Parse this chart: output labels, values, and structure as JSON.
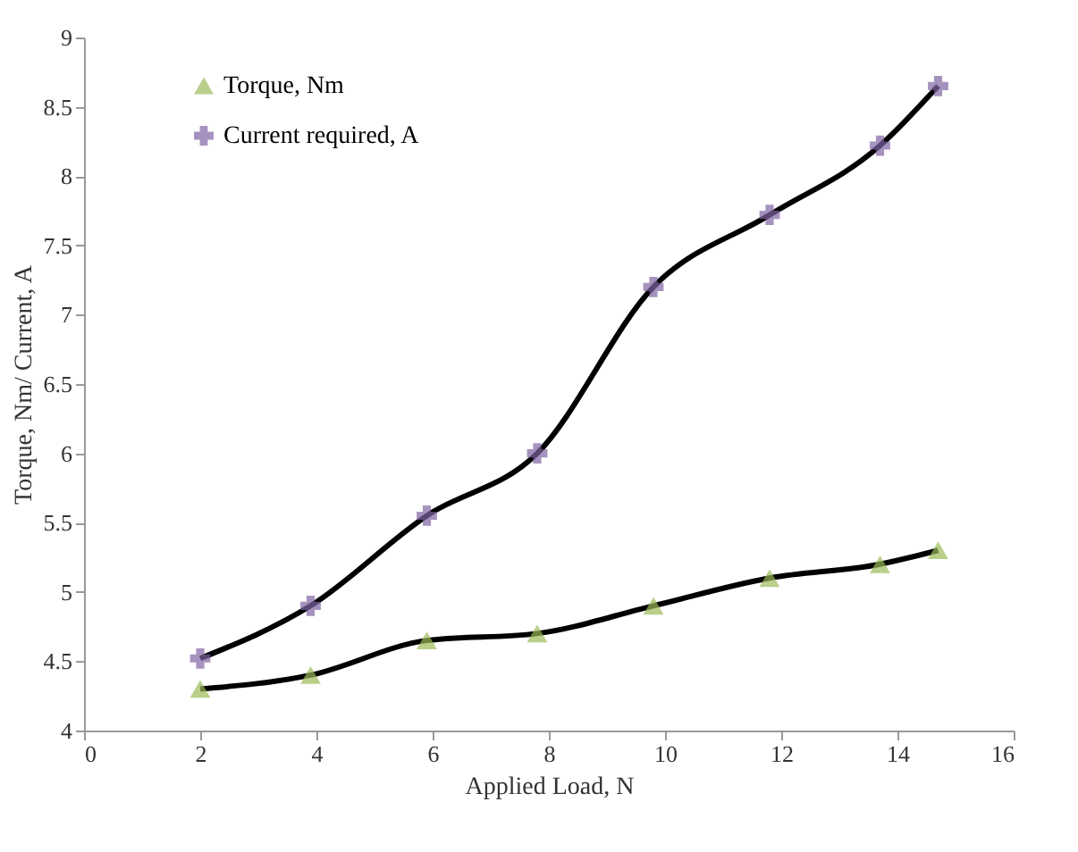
{
  "chart_data": {
    "type": "line",
    "xlabel": "Applied Load, N",
    "ylabel": "Torque, Nm/ Current, A",
    "x": [
      2,
      3.9,
      5.9,
      7.8,
      9.8,
      11.8,
      13.7,
      14.7
    ],
    "series": [
      {
        "name": "Torque, Nm",
        "color": "#9bbb59",
        "marker": "triangle",
        "values": [
          4.3,
          4.4,
          4.65,
          4.7,
          4.9,
          5.1,
          5.2,
          5.3
        ]
      },
      {
        "name": "Current required, A",
        "color": "#8064a2",
        "marker": "cross",
        "values": [
          4.52,
          4.9,
          5.55,
          6.0,
          7.2,
          7.72,
          8.22,
          8.65
        ]
      }
    ],
    "xlim": [
      0,
      16
    ],
    "xticks": [
      0,
      2,
      4,
      6,
      8,
      10,
      12,
      14,
      16
    ],
    "ylim": [
      4,
      9
    ],
    "yticks": [
      4,
      4.5,
      5,
      5.5,
      6,
      6.5,
      7,
      7.5,
      8,
      8.5,
      9
    ],
    "grid": false,
    "legend": "top left"
  }
}
